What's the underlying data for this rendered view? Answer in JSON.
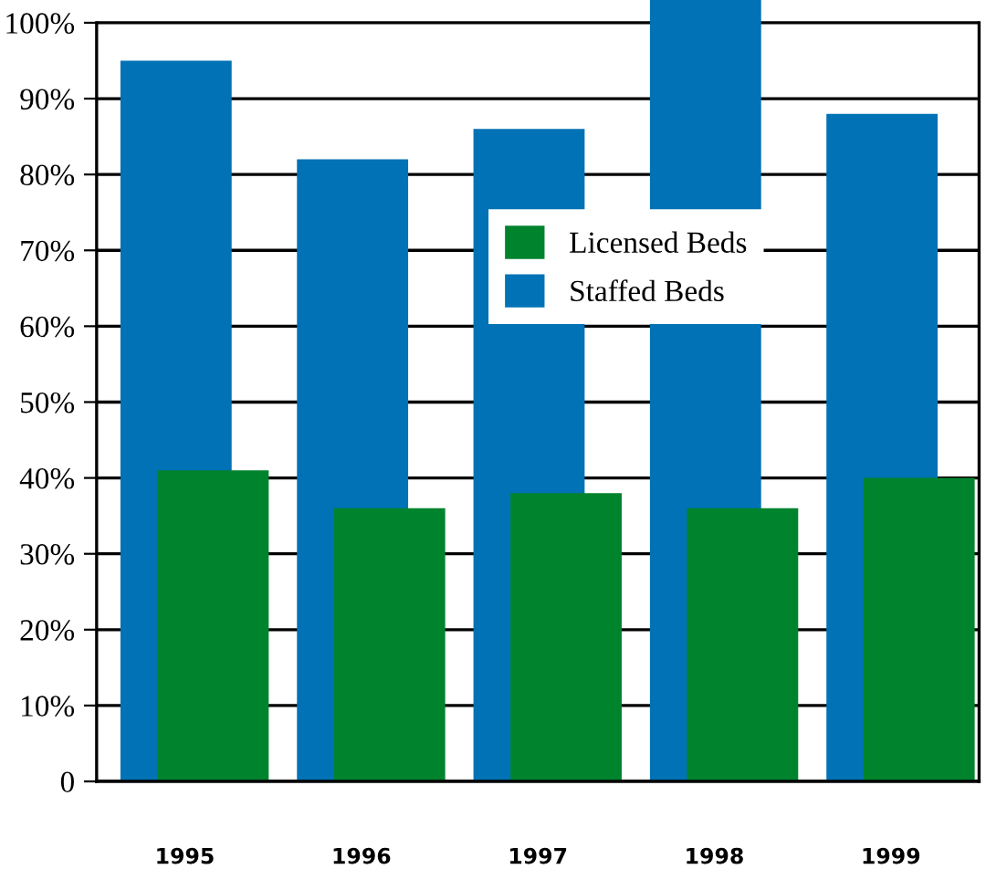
{
  "chart_data": {
    "type": "bar",
    "categories": [
      "1995",
      "1996",
      "1997",
      "1998",
      "1999"
    ],
    "series": [
      {
        "name": "Staffed Beds",
        "color": "#0072b5",
        "values": [
          95,
          82,
          86,
          103,
          88
        ]
      },
      {
        "name": "Licensed Beds",
        "color": "#00832d",
        "values": [
          41,
          36,
          38,
          36,
          40
        ]
      }
    ],
    "ylim": [
      0,
      103
    ],
    "yticks": [
      0,
      {
        "value": 10,
        "label": "10%"
      },
      {
        "value": 20,
        "label": "20%"
      },
      {
        "value": 30,
        "label": "30%"
      },
      {
        "value": 40,
        "label": "40%"
      },
      {
        "value": 50,
        "label": "50%"
      },
      {
        "value": 60,
        "label": "60%"
      },
      {
        "value": 70,
        "label": "70%"
      },
      {
        "value": 80,
        "label": "80%"
      },
      {
        "value": 90,
        "label": "90%"
      },
      {
        "value": 100,
        "label": "100%"
      }
    ],
    "grid": "y",
    "legend": "top"
  }
}
